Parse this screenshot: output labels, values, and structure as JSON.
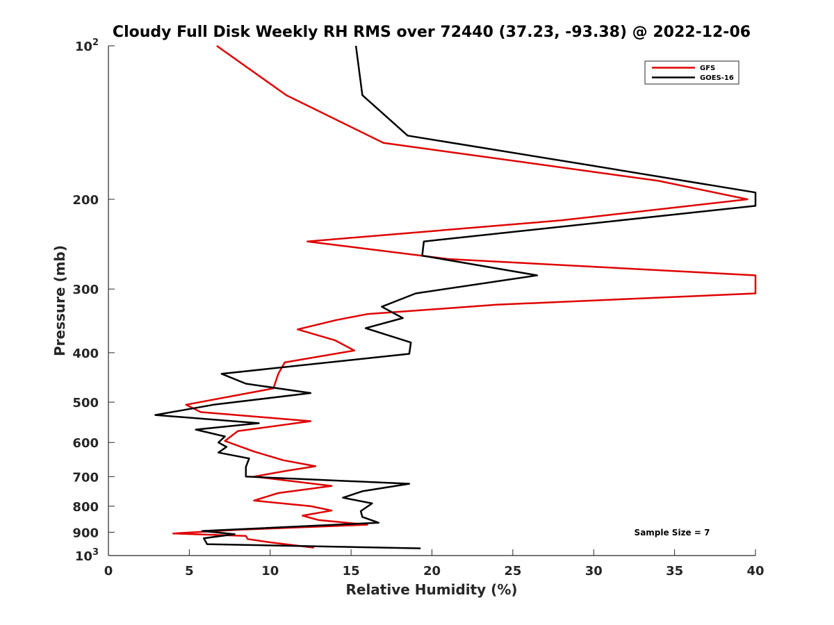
{
  "chart_data": {
    "type": "line",
    "title": "Cloudy Full Disk Weekly RH RMS over 72440 (37.23, -93.38) @ 2022-12-06",
    "xlabel": "Relative Humidity (%)",
    "ylabel": "Pressure (mb)",
    "xlim": [
      0,
      40
    ],
    "ylim": [
      100,
      1000
    ],
    "y_scale": "log",
    "y_reversed": true,
    "x_ticks": [
      "0",
      "5",
      "10",
      "15",
      "20",
      "25",
      "30",
      "35",
      "40"
    ],
    "y_ticks": [
      {
        "value": 100,
        "label": "10",
        "exp": "2"
      },
      {
        "value": 200,
        "label": "200",
        "exp": ""
      },
      {
        "value": 300,
        "label": "300",
        "exp": ""
      },
      {
        "value": 400,
        "label": "400",
        "exp": ""
      },
      {
        "value": 500,
        "label": "500",
        "exp": ""
      },
      {
        "value": 600,
        "label": "600",
        "exp": ""
      },
      {
        "value": 700,
        "label": "700",
        "exp": ""
      },
      {
        "value": 800,
        "label": "800",
        "exp": ""
      },
      {
        "value": 900,
        "label": "900",
        "exp": ""
      },
      {
        "value": 1000,
        "label": "10",
        "exp": "3"
      }
    ],
    "grid": false,
    "legend_position": "top-right",
    "annotation": "Sample Size = 7",
    "series": [
      {
        "name": "GFS",
        "color": "#e00000",
        "points": [
          [
            6.7,
            100
          ],
          [
            11.0,
            125
          ],
          [
            17.0,
            155
          ],
          [
            34.0,
            184
          ],
          [
            39.5,
            200
          ],
          [
            28.0,
            220
          ],
          [
            12.3,
            242
          ],
          [
            21.0,
            262
          ],
          [
            40.0,
            282
          ],
          [
            40.0,
            306
          ],
          [
            24.0,
            322
          ],
          [
            16.0,
            336
          ],
          [
            14.1,
            345
          ],
          [
            11.7,
            360
          ],
          [
            14.0,
            378
          ],
          [
            15.2,
            396
          ],
          [
            10.9,
            418
          ],
          [
            10.5,
            440
          ],
          [
            10.2,
            470
          ],
          [
            4.8,
            506
          ],
          [
            5.7,
            523
          ],
          [
            12.5,
            545
          ],
          [
            8.0,
            570
          ],
          [
            7.2,
            596
          ],
          [
            9.0,
            625
          ],
          [
            10.8,
            650
          ],
          [
            12.8,
            668
          ],
          [
            11.0,
            682
          ],
          [
            9.0,
            700
          ],
          [
            13.8,
            730
          ],
          [
            10.5,
            754
          ],
          [
            9.0,
            780
          ],
          [
            12.5,
            800
          ],
          [
            13.8,
            816
          ],
          [
            12.0,
            835
          ],
          [
            13.0,
            852
          ],
          [
            16.0,
            870
          ],
          [
            8.0,
            890
          ],
          [
            4.0,
            905
          ],
          [
            8.5,
            915
          ],
          [
            8.6,
            928
          ],
          [
            10.0,
            942
          ],
          [
            12.7,
            965
          ]
        ]
      },
      {
        "name": "GOES-16",
        "color": "#000000",
        "points": [
          [
            15.3,
            100
          ],
          [
            15.7,
            125
          ],
          [
            18.5,
            150
          ],
          [
            30.0,
            172
          ],
          [
            40.0,
            194
          ],
          [
            40.0,
            206
          ],
          [
            19.5,
            242
          ],
          [
            19.4,
            258
          ],
          [
            26.5,
            282
          ],
          [
            19.0,
            306
          ],
          [
            16.9,
            325
          ],
          [
            18.2,
            342
          ],
          [
            15.9,
            358
          ],
          [
            18.7,
            382
          ],
          [
            18.6,
            402
          ],
          [
            7.0,
            440
          ],
          [
            8.5,
            460
          ],
          [
            12.5,
            480
          ],
          [
            6.5,
            506
          ],
          [
            2.9,
            530
          ],
          [
            9.3,
            550
          ],
          [
            5.4,
            566
          ],
          [
            7.2,
            584
          ],
          [
            6.8,
            600
          ],
          [
            7.3,
            612
          ],
          [
            6.8,
            628
          ],
          [
            8.7,
            645
          ],
          [
            8.5,
            670
          ],
          [
            8.5,
            700
          ],
          [
            18.6,
            723
          ],
          [
            15.7,
            748
          ],
          [
            14.5,
            770
          ],
          [
            16.3,
            790
          ],
          [
            15.6,
            818
          ],
          [
            15.7,
            840
          ],
          [
            16.7,
            862
          ],
          [
            5.8,
            895
          ],
          [
            7.8,
            908
          ],
          [
            5.9,
            925
          ],
          [
            6.1,
            950
          ],
          [
            19.3,
            968
          ]
        ]
      }
    ]
  }
}
